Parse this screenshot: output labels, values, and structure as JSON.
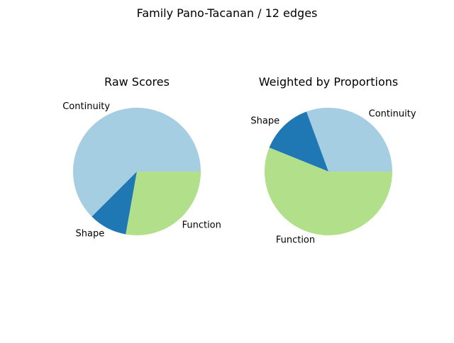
{
  "figure": {
    "suptitle": "Family Pano-Tacanan / 12 edges"
  },
  "chart_data": [
    {
      "type": "pie",
      "title": "Raw Scores",
      "labels": [
        "Continuity",
        "Shape",
        "Function"
      ],
      "values": [
        0.625,
        0.097,
        0.278
      ],
      "colors": [
        "#a6cee3",
        "#1f78b4",
        "#b2df8a"
      ],
      "start_angle_deg": 0,
      "direction": "counterclockwise"
    },
    {
      "type": "pie",
      "title": "Weighted by Proportions",
      "labels": [
        "Continuity",
        "Shape",
        "Function"
      ],
      "values": [
        0.306,
        0.133,
        0.561
      ],
      "colors": [
        "#a6cee3",
        "#1f78b4",
        "#b2df8a"
      ],
      "start_angle_deg": 0,
      "direction": "counterclockwise"
    }
  ]
}
